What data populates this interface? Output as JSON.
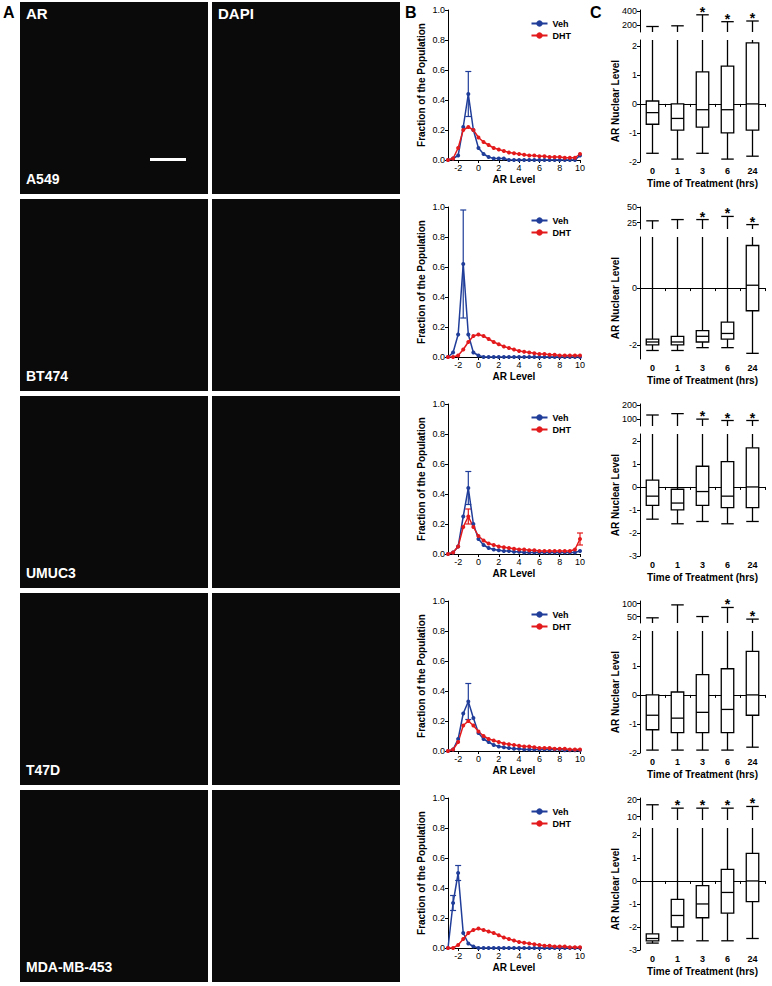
{
  "figure": {
    "panel_labels": [
      "A",
      "B",
      "C"
    ],
    "image_channels": [
      "AR",
      "DAPI"
    ],
    "cell_lines": [
      "A549",
      "BT474",
      "UMUC3",
      "T47D",
      "MDA-MB-453"
    ]
  },
  "chart_data": [
    {
      "type": "line",
      "x_label": "AR Level",
      "y_label": "Fraction of the Population",
      "x": [
        -3,
        -2.5,
        -2,
        -1.5,
        -1,
        -0.5,
        0,
        0.5,
        1,
        1.5,
        2,
        2.5,
        3,
        3.5,
        4,
        4.5,
        5,
        5.5,
        6,
        6.5,
        7,
        7.5,
        8,
        8.5,
        9,
        9.5,
        10
      ],
      "xlim": [
        -3,
        10
      ],
      "xticks": [
        -2,
        0,
        2,
        4,
        6,
        8,
        10
      ],
      "ylim": [
        0,
        1
      ],
      "yticks": [
        {
          "value": 0,
          "label": "0.0"
        },
        0.2,
        0.4,
        0.6,
        0.8,
        {
          "value": 1,
          "label": "1.0"
        }
      ],
      "grid": false,
      "legend": "upper right",
      "series": [
        {
          "name": "Veh",
          "color": "#1f3d99",
          "marker": "circle",
          "values": [
            0,
            0.01,
            0.03,
            0.22,
            0.44,
            0.2,
            0.08,
            0.04,
            0.02,
            0.01,
            0.01,
            0.01,
            0,
            0,
            0,
            0,
            0,
            0,
            0,
            0,
            0,
            0,
            0,
            0,
            0,
            0,
            0.03
          ],
          "errors": [
            null,
            null,
            null,
            null,
            0.15,
            null,
            null,
            null,
            null,
            null,
            null,
            null,
            null,
            null,
            null,
            null,
            null,
            null,
            null,
            null,
            null,
            null,
            null,
            null,
            null,
            null,
            null
          ]
        },
        {
          "name": "DHT",
          "color": "#e31a1c",
          "marker": "circle",
          "values": [
            0,
            0.01,
            0.08,
            0.2,
            0.22,
            0.2,
            0.15,
            0.12,
            0.1,
            0.08,
            0.07,
            0.06,
            0.05,
            0.045,
            0.04,
            0.035,
            0.03,
            0.03,
            0.025,
            0.025,
            0.02,
            0.02,
            0.02,
            0.015,
            0.015,
            0.015,
            0.04
          ]
        }
      ]
    },
    {
      "type": "line",
      "x_label": "AR Level",
      "y_label": "Fraction of the Population",
      "x": [
        -3,
        -2.5,
        -2,
        -1.5,
        -1,
        -0.5,
        0,
        0.5,
        1,
        1.5,
        2,
        2.5,
        3,
        3.5,
        4,
        4.5,
        5,
        5.5,
        6,
        6.5,
        7,
        7.5,
        8,
        8.5,
        9,
        9.5,
        10
      ],
      "xlim": [
        -3,
        10
      ],
      "xticks": [
        -2,
        0,
        2,
        4,
        6,
        8,
        10
      ],
      "ylim": [
        0,
        1
      ],
      "yticks": [
        {
          "value": 0,
          "label": "0.0"
        },
        0.2,
        0.4,
        0.6,
        0.8,
        {
          "value": 1,
          "label": "1.0"
        }
      ],
      "grid": false,
      "legend": "upper right",
      "series": [
        {
          "name": "Veh",
          "color": "#1f3d99",
          "marker": "circle",
          "values": [
            0,
            0.03,
            0.15,
            0.62,
            0.15,
            0.03,
            0.01,
            0,
            0,
            0,
            0,
            0,
            0,
            0,
            0,
            0,
            0,
            0,
            0,
            0,
            0,
            0,
            0,
            0,
            0,
            0,
            0
          ],
          "errors": [
            null,
            null,
            null,
            0.36,
            null,
            null,
            null,
            null,
            null,
            null,
            null,
            null,
            null,
            null,
            null,
            null,
            null,
            null,
            null,
            null,
            null,
            null,
            null,
            null,
            null,
            null,
            null
          ]
        },
        {
          "name": "DHT",
          "color": "#e31a1c",
          "marker": "circle",
          "values": [
            0,
            0,
            0.01,
            0.05,
            0.1,
            0.14,
            0.15,
            0.14,
            0.12,
            0.1,
            0.085,
            0.07,
            0.06,
            0.05,
            0.04,
            0.035,
            0.03,
            0.025,
            0.02,
            0.02,
            0.015,
            0.015,
            0.01,
            0.01,
            0.01,
            0.01,
            0.01
          ]
        }
      ]
    },
    {
      "type": "line",
      "x_label": "AR Level",
      "y_label": "Fraction of the Population",
      "x": [
        -3,
        -2.5,
        -2,
        -1.5,
        -1,
        -0.5,
        0,
        0.5,
        1,
        1.5,
        2,
        2.5,
        3,
        3.5,
        4,
        4.5,
        5,
        5.5,
        6,
        6.5,
        7,
        7.5,
        8,
        8.5,
        9,
        9.5,
        10
      ],
      "xlim": [
        -3,
        10
      ],
      "xticks": [
        -2,
        0,
        2,
        4,
        6,
        8,
        10
      ],
      "ylim": [
        0,
        1
      ],
      "yticks": [
        {
          "value": 0,
          "label": "0.0"
        },
        0.2,
        0.4,
        0.6,
        0.8,
        {
          "value": 1,
          "label": "1.0"
        }
      ],
      "grid": false,
      "legend": "upper right",
      "series": [
        {
          "name": "Veh",
          "color": "#1f3d99",
          "marker": "circle",
          "values": [
            0,
            0.01,
            0.05,
            0.25,
            0.44,
            0.2,
            0.1,
            0.06,
            0.04,
            0.03,
            0.025,
            0.02,
            0.02,
            0.015,
            0.015,
            0.01,
            0.01,
            0.01,
            0.01,
            0.01,
            0.01,
            0.01,
            0.01,
            0.01,
            0.01,
            0.01,
            0.02
          ],
          "errors": [
            null,
            null,
            null,
            null,
            0.11,
            null,
            null,
            null,
            null,
            null,
            null,
            null,
            null,
            null,
            null,
            null,
            null,
            null,
            null,
            null,
            null,
            null,
            null,
            null,
            null,
            null,
            null
          ]
        },
        {
          "name": "DHT",
          "color": "#e31a1c",
          "marker": "circle",
          "values": [
            0,
            0.01,
            0.05,
            0.18,
            0.25,
            0.18,
            0.12,
            0.09,
            0.07,
            0.06,
            0.05,
            0.045,
            0.04,
            0.035,
            0.03,
            0.03,
            0.025,
            0.025,
            0.02,
            0.02,
            0.02,
            0.02,
            0.02,
            0.02,
            0.02,
            0.03,
            0.1
          ],
          "errors": [
            null,
            null,
            null,
            null,
            0.05,
            null,
            null,
            null,
            null,
            null,
            null,
            null,
            null,
            null,
            null,
            null,
            null,
            null,
            null,
            null,
            null,
            null,
            null,
            null,
            null,
            null,
            0.04
          ]
        }
      ]
    },
    {
      "type": "line",
      "x_label": "AR Level",
      "y_label": "Fraction of the Population",
      "x": [
        -3,
        -2.5,
        -2,
        -1.5,
        -1,
        -0.5,
        0,
        0.5,
        1,
        1.5,
        2,
        2.5,
        3,
        3.5,
        4,
        4.5,
        5,
        5.5,
        6,
        6.5,
        7,
        7.5,
        8,
        8.5,
        9,
        9.5,
        10
      ],
      "xlim": [
        -3,
        10
      ],
      "xticks": [
        -2,
        0,
        2,
        4,
        6,
        8,
        10
      ],
      "ylim": [
        0,
        1
      ],
      "yticks": [
        {
          "value": 0,
          "label": "0.0"
        },
        0.2,
        0.4,
        0.6,
        0.8,
        {
          "value": 1,
          "label": "1.0"
        }
      ],
      "grid": false,
      "legend": "upper right",
      "series": [
        {
          "name": "Veh",
          "color": "#1f3d99",
          "marker": "circle",
          "values": [
            0,
            0.01,
            0.08,
            0.25,
            0.33,
            0.22,
            0.12,
            0.08,
            0.06,
            0.04,
            0.03,
            0.025,
            0.02,
            0.015,
            0.015,
            0.01,
            0.01,
            0.01,
            0.01,
            0.01,
            0.01,
            0.01,
            0.01,
            0.005,
            0.005,
            0.005,
            0.005
          ],
          "errors": [
            null,
            null,
            null,
            null,
            0.12,
            null,
            null,
            null,
            null,
            null,
            null,
            null,
            null,
            null,
            null,
            null,
            null,
            null,
            null,
            null,
            null,
            null,
            null,
            null,
            null,
            null,
            null
          ]
        },
        {
          "name": "DHT",
          "color": "#e31a1c",
          "marker": "circle",
          "values": [
            0,
            0.01,
            0.06,
            0.17,
            0.2,
            0.17,
            0.13,
            0.1,
            0.08,
            0.07,
            0.06,
            0.05,
            0.045,
            0.04,
            0.035,
            0.03,
            0.03,
            0.025,
            0.02,
            0.02,
            0.02,
            0.015,
            0.015,
            0.015,
            0.01,
            0.01,
            0.01
          ]
        }
      ]
    },
    {
      "type": "line",
      "x_label": "AR Level",
      "y_label": "Fraction of the Population",
      "x": [
        -3,
        -2.5,
        -2,
        -1.5,
        -1,
        -0.5,
        0,
        0.5,
        1,
        1.5,
        2,
        2.5,
        3,
        3.5,
        4,
        4.5,
        5,
        5.5,
        6,
        6.5,
        7,
        7.5,
        8,
        8.5,
        9,
        9.5,
        10
      ],
      "xlim": [
        -3,
        10
      ],
      "xticks": [
        -2,
        0,
        2,
        4,
        6,
        8,
        10
      ],
      "ylim": [
        0,
        1
      ],
      "yticks": [
        {
          "value": 0,
          "label": "0.0"
        },
        0.2,
        0.4,
        0.6,
        0.8,
        {
          "value": 1,
          "label": "1.0"
        }
      ],
      "grid": false,
      "legend": "upper right",
      "series": [
        {
          "name": "Veh",
          "color": "#1f3d99",
          "marker": "circle",
          "values": [
            0,
            0.3,
            0.5,
            0.1,
            0.03,
            0.01,
            0,
            0,
            0,
            0,
            0,
            0,
            0,
            0,
            0,
            0,
            0,
            0,
            0,
            0,
            0,
            0,
            0,
            0,
            0,
            0,
            0
          ],
          "errors": [
            null,
            0.05,
            0.05,
            null,
            null,
            null,
            null,
            null,
            null,
            null,
            null,
            null,
            null,
            null,
            null,
            null,
            null,
            null,
            null,
            null,
            null,
            null,
            null,
            null,
            null,
            null,
            null
          ]
        },
        {
          "name": "DHT",
          "color": "#e31a1c",
          "marker": "circle",
          "values": [
            0,
            0,
            0.02,
            0.06,
            0.1,
            0.12,
            0.13,
            0.12,
            0.11,
            0.1,
            0.085,
            0.07,
            0.06,
            0.05,
            0.04,
            0.035,
            0.03,
            0.025,
            0.02,
            0.015,
            0.015,
            0.01,
            0.01,
            0.01,
            0.005,
            0.005,
            0.005
          ]
        }
      ]
    },
    {
      "type": "box",
      "x_label": "Time of Treatment (hrs)",
      "y_label": "AR Nuclear Level",
      "categories": [
        "0",
        "1",
        "3",
        "6",
        "24"
      ],
      "ylim": [
        -2,
        2.2
      ],
      "yticks": [
        -2,
        -1,
        0,
        1,
        2
      ],
      "upper_ylim": [
        100,
        420
      ],
      "upper_yticks": [
        200,
        400
      ],
      "grid": false,
      "min": [
        -1.7,
        -1.9,
        -1.7,
        -1.9,
        -1.8
      ],
      "q1": [
        -0.7,
        -0.9,
        -0.8,
        -1,
        -0.9
      ],
      "median": [
        -0.3,
        -0.5,
        -0.2,
        -0.2,
        0
      ],
      "q3": [
        0.1,
        0,
        1.1,
        1.3,
        2.1
      ],
      "max": [
        180,
        190,
        350,
        250,
        260
      ],
      "significant": [
        false,
        false,
        true,
        true,
        true
      ],
      "significance_mark": "*"
    },
    {
      "type": "box",
      "x_label": "Time of Treatment (hrs)",
      "y_label": "AR Nuclear Level",
      "categories": [
        "0",
        "1",
        "3",
        "6",
        "24"
      ],
      "ylim": [
        -2.5,
        1.8
      ],
      "yticks": [
        -2,
        0
      ],
      "upper_ylim": [
        15,
        50
      ],
      "upper_yticks": [
        25,
        50
      ],
      "grid": false,
      "min": [
        -2.2,
        -2.2,
        -2.1,
        -2.1,
        -2.3
      ],
      "q1": [
        -2,
        -2,
        -1.9,
        -1.8,
        -0.8
      ],
      "median": [
        -1.9,
        -1.9,
        -1.7,
        -1.6,
        0.1
      ],
      "q3": [
        -1.8,
        -1.7,
        -1.5,
        -1.2,
        1.5
      ],
      "max": [
        28,
        30,
        30,
        35,
        22
      ],
      "significant": [
        false,
        false,
        true,
        true,
        true
      ],
      "significance_mark": "*"
    },
    {
      "type": "box",
      "x_label": "Time of Treatment (hrs)",
      "y_label": "AR Nuclear Level",
      "categories": [
        "0",
        "1",
        "3",
        "6",
        "24"
      ],
      "ylim": [
        -3,
        2.3
      ],
      "yticks": [
        -3,
        -2,
        -1,
        0,
        1,
        2
      ],
      "upper_ylim": [
        50,
        210
      ],
      "upper_yticks": [
        100,
        200
      ],
      "grid": false,
      "min": [
        -1.4,
        -1.6,
        -1.5,
        -1.6,
        -1.5
      ],
      "q1": [
        -0.8,
        -1,
        -0.8,
        -0.9,
        -0.9
      ],
      "median": [
        -0.4,
        -0.7,
        -0.2,
        -0.4,
        0
      ],
      "q3": [
        0.3,
        -0.1,
        0.9,
        1.1,
        1.7
      ],
      "max": [
        130,
        140,
        100,
        90,
        90
      ],
      "significant": [
        false,
        false,
        true,
        true,
        true
      ],
      "significance_mark": "*"
    },
    {
      "type": "box",
      "x_label": "Time of Treatment (hrs)",
      "y_label": "AR Nuclear Level",
      "categories": [
        "0",
        "1",
        "3",
        "6",
        "24"
      ],
      "ylim": [
        -2,
        2.2
      ],
      "yticks": [
        -2,
        -1,
        0,
        1,
        2
      ],
      "upper_ylim": [
        25,
        110
      ],
      "upper_yticks": [
        50,
        100
      ],
      "grid": false,
      "min": [
        -1.9,
        -1.9,
        -1.9,
        -1.9,
        -1.8
      ],
      "q1": [
        -1.2,
        -1.3,
        -1.3,
        -1.3,
        -0.7
      ],
      "median": [
        -0.7,
        -0.8,
        -0.6,
        -0.5,
        0
      ],
      "q3": [
        0,
        0.1,
        0.7,
        0.9,
        1.5
      ],
      "max": [
        45,
        95,
        50,
        85,
        40
      ],
      "significant": [
        false,
        false,
        false,
        true,
        true
      ],
      "significance_mark": "*"
    },
    {
      "type": "box",
      "x_label": "Time of Treatment (hrs)",
      "y_label": "AR Nuclear Level",
      "categories": [
        "0",
        "1",
        "3",
        "6",
        "24"
      ],
      "ylim": [
        -3,
        2.3
      ],
      "yticks": [
        -3,
        -2,
        -1,
        0,
        1,
        2
      ],
      "upper_ylim": [
        8,
        21
      ],
      "upper_yticks": [
        10,
        20
      ],
      "grid": false,
      "min": [
        -2.7,
        -2.6,
        -2.6,
        -2.6,
        -2.5
      ],
      "q1": [
        -2.6,
        -2,
        -1.6,
        -1.4,
        -0.9
      ],
      "median": [
        -2.5,
        -1.5,
        -1,
        -0.5,
        0
      ],
      "q3": [
        -2.3,
        -0.8,
        -0.2,
        0.5,
        1.2
      ],
      "max": [
        17,
        15,
        15,
        15,
        16
      ],
      "significant": [
        false,
        true,
        true,
        true,
        true
      ],
      "significance_mark": "*"
    }
  ]
}
